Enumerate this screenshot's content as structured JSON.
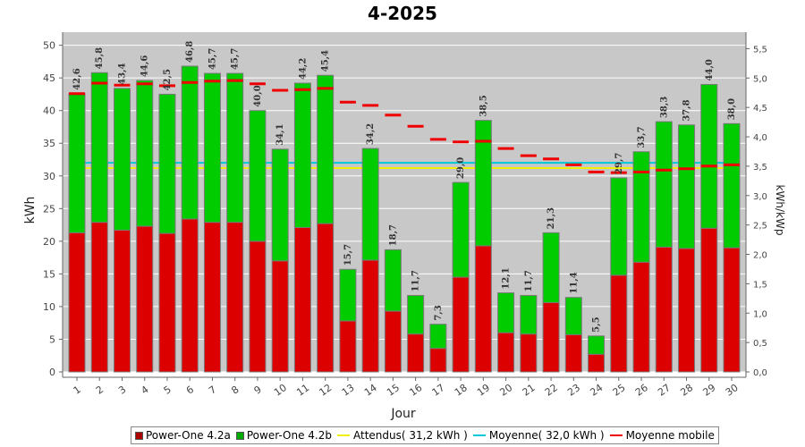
{
  "chart_data": {
    "type": "bar",
    "stacked": true,
    "title": "4-2025",
    "xlabel": "Jour",
    "ylabel": "kWh",
    "y2label": "kWh/kWp",
    "ylim": [
      0,
      52
    ],
    "y2lim": [
      0,
      5.78
    ],
    "yticks": [
      0,
      5,
      10,
      15,
      20,
      25,
      30,
      35,
      40,
      45,
      50
    ],
    "y2ticks": [
      "0,0",
      "0,5",
      "1,0",
      "1,5",
      "2,0",
      "2,5",
      "3,0",
      "3,5",
      "4,0",
      "4,5",
      "5,0",
      "5,5"
    ],
    "categories": [
      "1",
      "2",
      "3",
      "4",
      "5",
      "6",
      "7",
      "8",
      "9",
      "10",
      "11",
      "12",
      "13",
      "14",
      "15",
      "16",
      "17",
      "18",
      "19",
      "20",
      "21",
      "22",
      "23",
      "24",
      "25",
      "26",
      "27",
      "28",
      "29",
      "30"
    ],
    "totals_labels": [
      "42,6",
      "45,8",
      "43,4",
      "44,6",
      "42,5",
      "46,8",
      "45,7",
      "45,7",
      "40,0",
      "34,1",
      "44,2",
      "45,4",
      "15,7",
      "34,2",
      "18,7",
      "11,7",
      "7,3",
      "29,0",
      "38,5",
      "12,1",
      "11,7",
      "21,3",
      "11,4",
      "5,5",
      "29,7",
      "33,7",
      "38,3",
      "37,8",
      "44,0",
      "38,0"
    ],
    "series": [
      {
        "name": "Power-One 4.2a",
        "color": "#dd0000",
        "values": [
          21.3,
          22.9,
          21.7,
          22.3,
          21.2,
          23.4,
          22.9,
          22.9,
          20.0,
          17.0,
          22.1,
          22.7,
          7.8,
          17.1,
          9.3,
          5.8,
          3.6,
          14.5,
          19.3,
          6.0,
          5.8,
          10.6,
          5.7,
          2.7,
          14.8,
          16.8,
          19.1,
          18.9,
          22.0,
          19.0
        ]
      },
      {
        "name": "Power-One 4.2b",
        "color": "#00cc00",
        "values": [
          21.3,
          22.9,
          21.7,
          22.3,
          21.3,
          23.4,
          22.8,
          22.8,
          20.0,
          17.1,
          22.1,
          22.7,
          7.9,
          17.1,
          9.4,
          5.9,
          3.7,
          14.5,
          19.2,
          6.1,
          5.9,
          10.7,
          5.7,
          2.8,
          14.9,
          16.9,
          19.2,
          18.9,
          22.0,
          19.0
        ]
      }
    ],
    "reference_lines": [
      {
        "name": "Attendus( 31,2 kWh )",
        "value": 31.2,
        "color": "#f0f000"
      },
      {
        "name": "Moyenne( 32,0 kWh )",
        "value": 32.0,
        "color": "#00c8d8"
      }
    ],
    "moving_average": {
      "name": "Moyenne mobile",
      "color": "#ee0000",
      "values": [
        42.6,
        44.2,
        43.9,
        44.1,
        43.8,
        44.3,
        44.5,
        44.6,
        44.1,
        43.1,
        43.2,
        43.4,
        41.3,
        40.8,
        39.3,
        37.6,
        35.6,
        35.2,
        35.3,
        34.2,
        33.1,
        32.6,
        31.7,
        30.6,
        30.5,
        30.6,
        30.9,
        31.1,
        31.5,
        31.7
      ]
    },
    "grid": true
  },
  "legend": {
    "items": [
      {
        "label": "Power-One 4.2a",
        "color": "#aa0000",
        "kind": "box"
      },
      {
        "label": "Power-One 4.2b",
        "color": "#00aa00",
        "kind": "box"
      },
      {
        "label": "Attendus( 31,2 kWh )",
        "color": "#f0f000",
        "kind": "line"
      },
      {
        "label": "Moyenne( 32,0 kWh )",
        "color": "#00c8d8",
        "kind": "line"
      },
      {
        "label": "Moyenne mobile",
        "color": "#ee0000",
        "kind": "line"
      }
    ]
  }
}
